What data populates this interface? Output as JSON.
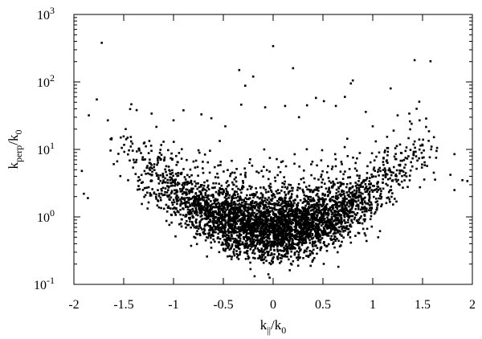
{
  "chart_data": {
    "type": "scatter",
    "title": "",
    "xlabel": {
      "main": "k",
      "sub1": "||",
      "slash": "/k",
      "sub2": "0"
    },
    "ylabel": {
      "main": "k",
      "sub1": "perp",
      "slash": "/k",
      "sub2": "0"
    },
    "xlim": [
      -2,
      2
    ],
    "ylim": [
      0.1,
      1000
    ],
    "yscale": "log",
    "grid": false,
    "legend": "none",
    "marker_color": "#000000",
    "xticks": [
      {
        "value": -2,
        "label": "-2"
      },
      {
        "value": -1.5,
        "label": "-1.5"
      },
      {
        "value": -1,
        "label": "-1"
      },
      {
        "value": -0.5,
        "label": "-0.5"
      },
      {
        "value": 0,
        "label": "0"
      },
      {
        "value": 0.5,
        "label": "0.5"
      },
      {
        "value": 1,
        "label": "1"
      },
      {
        "value": 1.5,
        "label": "1.5"
      },
      {
        "value": 2,
        "label": "2"
      }
    ],
    "yticks": [
      {
        "value": 0.1,
        "base": "10",
        "exp": "-1"
      },
      {
        "value": 1,
        "base": "10",
        "exp": "0"
      },
      {
        "value": 10,
        "base": "10",
        "exp": "1"
      },
      {
        "value": 100,
        "base": "10",
        "exp": "2"
      },
      {
        "value": 1000,
        "base": "10",
        "exp": "3"
      }
    ],
    "points": [
      [
        -1.72,
        380
      ],
      [
        0.0,
        340
      ],
      [
        1.42,
        210
      ],
      [
        0.2,
        160
      ],
      [
        -0.34,
        150
      ],
      [
        0.8,
        105
      ],
      [
        -0.2,
        120
      ],
      [
        0.78,
        95
      ],
      [
        1.18,
        80
      ],
      [
        -1.77,
        55
      ],
      [
        -1.85,
        32
      ],
      [
        -1.66,
        27
      ],
      [
        -1.22,
        34
      ],
      [
        -0.9,
        38
      ],
      [
        -0.72,
        33
      ],
      [
        -0.32,
        46
      ],
      [
        -0.08,
        42
      ],
      [
        0.12,
        44
      ],
      [
        0.34,
        45
      ],
      [
        0.43,
        58
      ],
      [
        0.51,
        52
      ],
      [
        0.63,
        44
      ],
      [
        0.93,
        36
      ],
      [
        1.25,
        32
      ],
      [
        1.44,
        40
      ],
      [
        1.47,
        27
      ],
      [
        -0.62,
        29
      ],
      [
        -1.0,
        27
      ],
      [
        0.26,
        30
      ],
      [
        -0.48,
        22
      ],
      [
        1.0,
        22
      ],
      [
        1.21,
        19
      ],
      [
        -1.48,
        20
      ],
      [
        -0.28,
        88
      ],
      [
        0.72,
        60
      ],
      [
        1.39,
        24
      ],
      [
        -1.53,
        15
      ],
      [
        -1.1,
        13
      ],
      [
        1.59,
        11
      ],
      [
        1.82,
        8.5
      ],
      [
        1.64,
        9.5
      ],
      [
        -1.92,
        4.8
      ],
      [
        1.9,
        3.5
      ],
      [
        1.82,
        2.5
      ],
      [
        -1.86,
        1.9
      ],
      [
        0.4,
        0.23
      ],
      [
        -0.25,
        0.24
      ],
      [
        0.1,
        0.26
      ],
      [
        0.2,
        0.22
      ],
      [
        1.95,
        3.4
      ],
      [
        -1.9,
        2.2
      ],
      [
        1.78,
        4.2
      ]
    ],
    "scatter_seed": 20240607,
    "scatter_count": 4200
  }
}
